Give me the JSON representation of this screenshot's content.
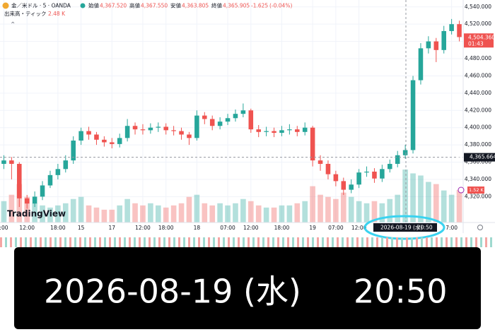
{
  "chart_data": {
    "type": "candlestick",
    "title": "金／米ドル · 5 · OANDA",
    "ohlc_header": [
      {
        "name": "始値",
        "price": {
          "value": 4367.52,
          "label": "4,367.520"
        }
      },
      {
        "name": "高値",
        "price": {
          "value": 4367.55,
          "label": "4,367.550"
        }
      },
      {
        "name": "安値",
        "price": {
          "value": 4363.805,
          "label": "4,363.805"
        }
      },
      {
        "name": "終値",
        "price": {
          "value": 4365.905,
          "label": "4,365.905"
        }
      }
    ],
    "change": {
      "value": -1.625,
      "label": "-1.625"
    },
    "change_pct": {
      "value": -0.04,
      "label": "(-0.04%)"
    },
    "volume_name": "出来高・ティック",
    "volume_value": {
      "value": 2.48,
      "label": "2.48 K"
    },
    "watermark": "TradingView",
    "categories": [
      ":00",
      null,
      null,
      "12:00",
      null,
      null,
      null,
      "18:00",
      null,
      null,
      "15",
      null,
      null,
      null,
      "17",
      null,
      null,
      null,
      "12:00",
      null,
      null,
      "18:00",
      null,
      null,
      null,
      "18",
      null,
      null,
      null,
      "07:00",
      null,
      null,
      "12:00",
      null,
      null,
      null,
      "18:00",
      null,
      null,
      null,
      "19",
      null,
      null,
      "07:00",
      null,
      null,
      "12:00",
      null,
      null,
      null,
      null,
      null,
      null,
      null,
      null,
      null,
      null,
      null,
      "7:00",
      null
    ],
    "open": [
      4358,
      4362,
      4358,
      4318,
      4312,
      4320,
      4333,
      4345,
      4352,
      4362,
      4385,
      4396,
      4392,
      4386,
      4383,
      4381,
      4388,
      4402,
      4398,
      4397,
      4400,
      4401,
      4397,
      4396,
      4392,
      4388,
      4414,
      4410,
      4402,
      4407,
      4411,
      4416,
      4420,
      4398,
      4395,
      4396,
      4394,
      4397,
      4398,
      4395,
      4400,
      4362,
      4358,
      4346,
      4338,
      4328,
      4334,
      4348,
      4349,
      4341,
      4352,
      4358,
      4368,
      4374,
      4455,
      4492,
      4500,
      4490,
      4512,
      4520
    ],
    "high": [
      4368,
      4366,
      4360,
      4322,
      4326,
      4338,
      4350,
      4358,
      4368,
      4390,
      4400,
      4401,
      4395,
      4390,
      4388,
      4393,
      4410,
      4406,
      4404,
      4405,
      4406,
      4405,
      4402,
      4400,
      4395,
      4420,
      4418,
      4414,
      4412,
      4416,
      4421,
      4428,
      4422,
      4403,
      4401,
      4400,
      4402,
      4404,
      4402,
      4406,
      4402,
      4368,
      4362,
      4350,
      4342,
      4340,
      4352,
      4355,
      4353,
      4357,
      4363,
      4373,
      4380,
      4460,
      4498,
      4506,
      4504,
      4518,
      4526,
      4524
    ],
    "low": [
      4352,
      4340,
      4308,
      4306,
      4308,
      4316,
      4330,
      4340,
      4348,
      4358,
      4380,
      4386,
      4380,
      4378,
      4376,
      4377,
      4384,
      4392,
      4392,
      4393,
      4395,
      4392,
      4391,
      4386,
      4380,
      4385,
      4404,
      4397,
      4398,
      4403,
      4407,
      4412,
      4394,
      4389,
      4390,
      4389,
      4390,
      4392,
      4390,
      4391,
      4355,
      4350,
      4340,
      4332,
      4322,
      4324,
      4330,
      4343,
      4336,
      4337,
      4348,
      4354,
      4364,
      4370,
      4450,
      4486,
      4476,
      4486,
      4508,
      4500
    ],
    "close": [
      4362,
      4358,
      4318,
      4312,
      4320,
      4333,
      4345,
      4352,
      4362,
      4385,
      4396,
      4392,
      4386,
      4383,
      4381,
      4388,
      4402,
      4398,
      4397,
      4400,
      4401,
      4397,
      4396,
      4392,
      4388,
      4414,
      4410,
      4402,
      4407,
      4411,
      4416,
      4420,
      4398,
      4395,
      4396,
      4394,
      4397,
      4398,
      4395,
      4400,
      4362,
      4358,
      4346,
      4338,
      4328,
      4334,
      4348,
      4349,
      4341,
      4352,
      4358,
      4368,
      4374,
      4455,
      4492,
      4500,
      4490,
      4512,
      4520,
      4505
    ],
    "volume": [
      1.0,
      1.3,
      1.8,
      1.2,
      0.9,
      0.8,
      0.7,
      0.8,
      0.9,
      1.1,
      1.2,
      0.8,
      0.7,
      0.6,
      0.6,
      0.8,
      1.1,
      0.9,
      0.8,
      0.9,
      0.8,
      0.7,
      0.8,
      0.9,
      1.2,
      1.3,
      0.9,
      0.8,
      0.9,
      0.8,
      0.9,
      1.1,
      1.0,
      0.8,
      0.7,
      0.7,
      0.8,
      0.8,
      0.9,
      1.0,
      1.7,
      1.3,
      1.2,
      1.1,
      1.4,
      1.2,
      1.0,
      0.9,
      1.0,
      0.9,
      1.1,
      1.3,
      2.48,
      2.3,
      2.2,
      1.9,
      1.8,
      1.5,
      1.3,
      1.52
    ],
    "volume_tag": {
      "value": 1.52,
      "label": "1.52 K"
    },
    "up_color": "#26a69a",
    "down_color": "#ef5350",
    "ylim": [
      4290,
      4548
    ],
    "yticks": [
      {
        "value": 4320,
        "label": "4,320.000"
      },
      {
        "value": 4340,
        "label": "4,340.000"
      },
      {
        "value": 4360,
        "label": "4,360.000"
      },
      {
        "value": 4380,
        "label": "4,380.000"
      },
      {
        "value": 4400,
        "label": "4,400.000"
      },
      {
        "value": 4420,
        "label": "4,420.000"
      },
      {
        "value": 4440,
        "label": "4,440.000"
      },
      {
        "value": 4460,
        "label": "4,460.000"
      },
      {
        "value": 4480,
        "label": "4,480.000"
      },
      {
        "value": 4500,
        "label": "4,500.000"
      },
      {
        "value": 4520,
        "label": "4,520.000"
      },
      {
        "value": 4540,
        "label": "4,540.000"
      }
    ],
    "grid": true,
    "last_price": {
      "value": 4504.36,
      "label": "4,504.360"
    },
    "countdown": "01:43",
    "crosshair": {
      "price": {
        "value": 4365.664,
        "label": "4,365.664"
      },
      "date": "2026-08-19 (水)",
      "time": "20:50"
    }
  }
}
